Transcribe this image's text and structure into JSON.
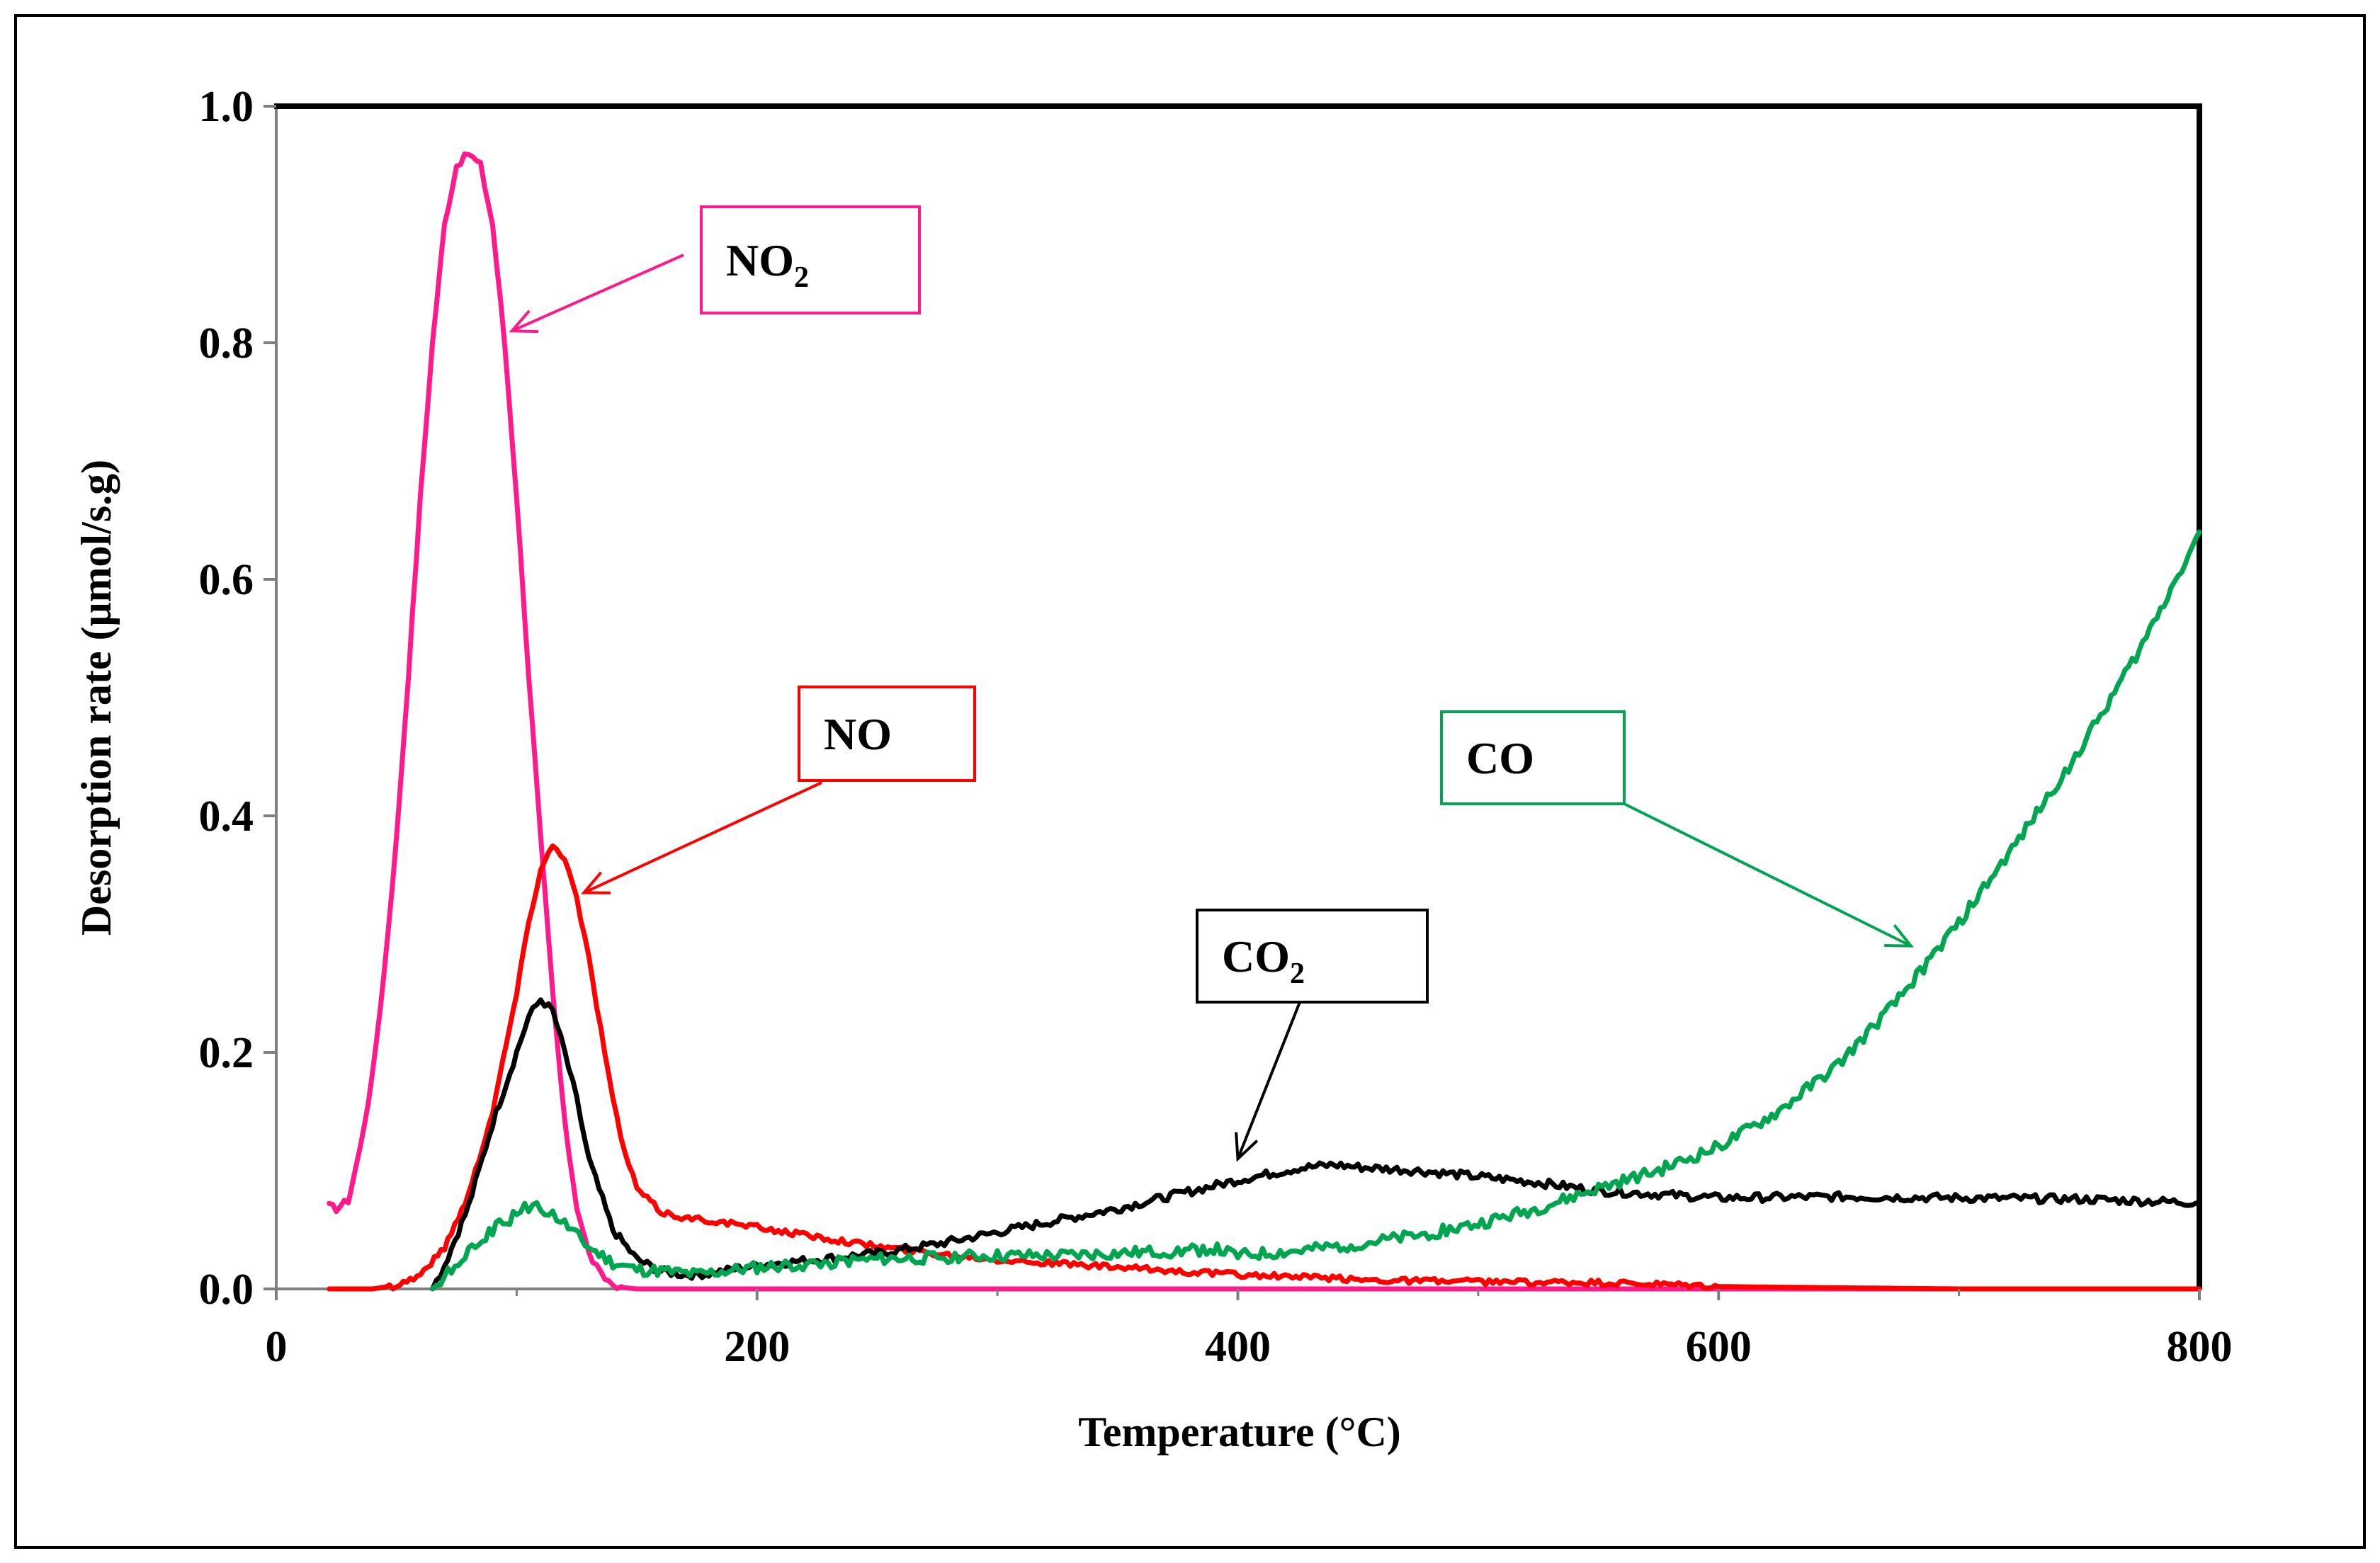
{
  "chart_data": {
    "type": "line",
    "title": "",
    "xlabel": "Temperature (°C)",
    "ylabel": "Desorption rate (μmol/s.g)",
    "xlim": [
      0,
      800
    ],
    "ylim": [
      0,
      1.0
    ],
    "x_ticks": [
      0,
      200,
      400,
      600,
      800
    ],
    "x_tick_labels": [
      "0",
      "200",
      "400",
      "600",
      "800"
    ],
    "y_ticks": [
      0,
      0.2,
      0.4,
      0.6,
      0.8,
      1.0
    ],
    "y_tick_labels": [
      "0.0",
      "0.2",
      "0.4",
      "0.6",
      "0.8",
      "1.0"
    ],
    "grid": false,
    "legend": "none (callout labels)",
    "series": [
      {
        "name": "NO2",
        "color": "#ff1a8c",
        "x": [
          22,
          25,
          30,
          35,
          40,
          45,
          50,
          55,
          60,
          65,
          70,
          75,
          80,
          85,
          90,
          95,
          100,
          105,
          110,
          115,
          120,
          125,
          130,
          135,
          140,
          145,
          150,
          160,
          180,
          200,
          300,
          400,
          500,
          600,
          700,
          800
        ],
        "y": [
          0.07,
          0.068,
          0.075,
          0.12,
          0.18,
          0.27,
          0.38,
          0.52,
          0.67,
          0.8,
          0.9,
          0.95,
          0.96,
          0.95,
          0.9,
          0.8,
          0.67,
          0.52,
          0.38,
          0.25,
          0.14,
          0.07,
          0.03,
          0.012,
          0.004,
          0.001,
          0.0,
          0.0,
          0.0,
          0.0,
          0.0,
          0.0,
          0.0,
          0.0,
          0.0,
          0.0
        ]
      },
      {
        "name": "NO",
        "color": "#ff0000",
        "x": [
          22,
          40,
          50,
          60,
          70,
          80,
          90,
          100,
          105,
          110,
          115,
          120,
          125,
          130,
          135,
          140,
          145,
          150,
          160,
          170,
          180,
          200,
          225,
          250,
          275,
          300,
          350,
          400,
          450,
          500,
          550,
          600,
          650,
          700,
          750,
          800
        ],
        "y": [
          0.0,
          0.0,
          0.003,
          0.012,
          0.035,
          0.08,
          0.15,
          0.25,
          0.31,
          0.355,
          0.375,
          0.365,
          0.33,
          0.28,
          0.22,
          0.16,
          0.115,
          0.085,
          0.065,
          0.06,
          0.058,
          0.052,
          0.044,
          0.036,
          0.03,
          0.025,
          0.018,
          0.012,
          0.008,
          0.006,
          0.005,
          0.002,
          0.001,
          0.0,
          0.0,
          0.0
        ]
      },
      {
        "name": "CO2",
        "color": "#000000",
        "x": [
          65,
          70,
          80,
          90,
          100,
          105,
          110,
          115,
          120,
          125,
          130,
          140,
          150,
          160,
          170,
          180,
          200,
          225,
          250,
          275,
          300,
          325,
          350,
          375,
          400,
          425,
          440,
          450,
          475,
          500,
          525,
          550,
          575,
          600,
          650,
          700,
          750,
          800
        ],
        "y": [
          0.0,
          0.02,
          0.07,
          0.14,
          0.2,
          0.23,
          0.245,
          0.235,
          0.2,
          0.16,
          0.11,
          0.05,
          0.025,
          0.015,
          0.012,
          0.013,
          0.02,
          0.025,
          0.03,
          0.038,
          0.048,
          0.058,
          0.068,
          0.08,
          0.092,
          0.102,
          0.105,
          0.103,
          0.1,
          0.095,
          0.09,
          0.083,
          0.08,
          0.077,
          0.078,
          0.077,
          0.076,
          0.073
        ]
      },
      {
        "name": "CO",
        "color": "#00a550",
        "x": [
          65,
          70,
          80,
          90,
          100,
          105,
          110,
          115,
          120,
          130,
          140,
          150,
          160,
          175,
          200,
          225,
          250,
          275,
          300,
          325,
          350,
          375,
          390,
          400,
          425,
          450,
          475,
          500,
          525,
          550,
          575,
          600,
          625,
          650,
          675,
          700,
          725,
          750,
          775,
          800
        ],
        "y": [
          0.0,
          0.01,
          0.03,
          0.05,
          0.063,
          0.07,
          0.068,
          0.063,
          0.055,
          0.035,
          0.022,
          0.016,
          0.015,
          0.012,
          0.018,
          0.022,
          0.025,
          0.027,
          0.028,
          0.028,
          0.03,
          0.032,
          0.034,
          0.028,
          0.032,
          0.038,
          0.045,
          0.055,
          0.068,
          0.085,
          0.1,
          0.12,
          0.15,
          0.19,
          0.245,
          0.31,
          0.38,
          0.455,
          0.54,
          0.64
        ]
      }
    ],
    "annotations": [
      {
        "id": "no2",
        "label": "NO",
        "sub": "2",
        "color": "#ff1a8c",
        "text_color": "#000000",
        "target_x": 98,
        "target_y": 0.81
      },
      {
        "id": "no",
        "label": "NO",
        "sub": "",
        "color": "#ff0000",
        "text_color": "#000000",
        "target_x": 128,
        "target_y": 0.335
      },
      {
        "id": "co2",
        "label": "CO",
        "sub": "2",
        "color": "#000000",
        "text_color": "#000000",
        "target_x": 400,
        "target_y": 0.11
      },
      {
        "id": "co",
        "label": "CO",
        "sub": "",
        "color": "#00a550",
        "text_color": "#000000",
        "target_x": 680,
        "target_y": 0.29
      }
    ]
  }
}
